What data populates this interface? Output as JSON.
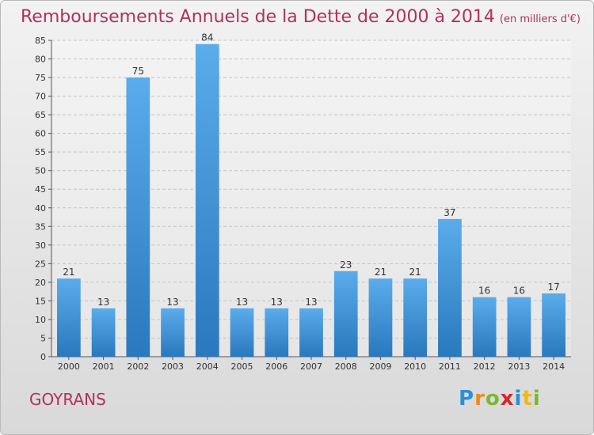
{
  "header": {
    "title": "Remboursements Annuels de la Dette de 2000 à 2014",
    "unit": "(en milliers d'€)"
  },
  "footer": {
    "commune": "GOYRANS",
    "logo_letters": [
      "P",
      "r",
      "o",
      "x",
      "i",
      "t",
      "i"
    ],
    "logo_colors": [
      "#2a8fd6",
      "#f08a1c",
      "#7cb82f",
      "#d9262c",
      "#2a8fd6",
      "#f0b61c",
      "#7cb82f"
    ]
  },
  "chart_data": {
    "type": "bar",
    "title": "Remboursements Annuels de la Dette de 2000 à 2014",
    "xlabel": "",
    "ylabel": "",
    "categories": [
      "2000",
      "2001",
      "2002",
      "2003",
      "2004",
      "2005",
      "2006",
      "2007",
      "2008",
      "2009",
      "2010",
      "2011",
      "2012",
      "2013",
      "2014"
    ],
    "values": [
      21,
      13,
      75,
      13,
      84,
      13,
      13,
      13,
      23,
      21,
      21,
      37,
      16,
      16,
      17
    ],
    "ylim": [
      0,
      85
    ],
    "yticks": [
      0,
      5,
      10,
      15,
      20,
      25,
      30,
      35,
      40,
      45,
      50,
      55,
      60,
      65,
      70,
      75,
      80,
      85
    ],
    "grid": true,
    "bar_color_top": "#5aaceb",
    "bar_color_bottom": "#2a78bd"
  }
}
